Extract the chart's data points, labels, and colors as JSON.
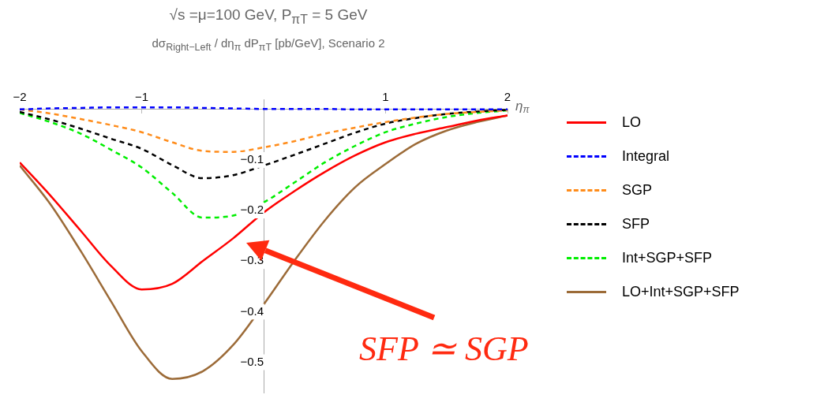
{
  "chart_data": {
    "type": "line",
    "title": "√s =μ=100 GeV, P$_{πT}$ = 5 GeV",
    "subtitle": "dσ$_{Right−Left}$ / dη$_{π}$ dP$_{πT}$ [pb/GeV], Scenario 2",
    "xlabel": "η$_{π}$",
    "x": [
      -2,
      -1.75,
      -1.5,
      -1.25,
      -1,
      -0.75,
      -0.5,
      -0.25,
      0,
      0.25,
      0.5,
      0.75,
      1,
      1.25,
      1.5,
      1.75,
      2
    ],
    "series": [
      {
        "name": "LO",
        "color": "#ff0000",
        "line_style": "solid",
        "values": [
          -0.105,
          -0.17,
          -0.24,
          -0.31,
          -0.356,
          -0.345,
          -0.3,
          -0.255,
          -0.204,
          -0.162,
          -0.124,
          -0.091,
          -0.065,
          -0.048,
          -0.035,
          -0.022,
          -0.012
        ]
      },
      {
        "name": "Integral",
        "color": "#0000ff",
        "line_style": "dashed",
        "values": [
          0,
          0.002,
          0.003,
          0.004,
          0.004,
          0.004,
          0.003,
          0.002,
          0.001,
          0.001,
          0.001,
          0,
          0,
          0,
          0,
          0,
          0
        ]
      },
      {
        "name": "SGP",
        "color": "#ff8c1a",
        "line_style": "dashed",
        "values": [
          0,
          -0.008,
          -0.019,
          -0.031,
          -0.045,
          -0.065,
          -0.082,
          -0.084,
          -0.075,
          -0.063,
          -0.048,
          -0.036,
          -0.025,
          -0.016,
          -0.009,
          -0.005,
          -0.002
        ]
      },
      {
        "name": "SFP",
        "color": "#000000",
        "line_style": "dashed",
        "values": [
          -0.005,
          -0.02,
          -0.038,
          -0.058,
          -0.078,
          -0.11,
          -0.136,
          -0.13,
          -0.111,
          -0.09,
          -0.068,
          -0.046,
          -0.028,
          -0.017,
          -0.009,
          -0.004,
          -0.001
        ]
      },
      {
        "name": "Int+SGP+SFP",
        "color": "#00ee00",
        "line_style": "dashed",
        "values": [
          -0.007,
          -0.025,
          -0.048,
          -0.08,
          -0.115,
          -0.165,
          -0.214,
          -0.21,
          -0.184,
          -0.145,
          -0.105,
          -0.072,
          -0.045,
          -0.028,
          -0.015,
          -0.007,
          -0.002
        ]
      },
      {
        "name": "LO+Int+SGP+SFP",
        "color": "#9c6b38",
        "line_style": "solid",
        "values": [
          -0.111,
          -0.187,
          -0.28,
          -0.38,
          -0.478,
          -0.533,
          -0.518,
          -0.466,
          -0.386,
          -0.3,
          -0.22,
          -0.154,
          -0.108,
          -0.068,
          -0.042,
          -0.025,
          -0.012
        ]
      }
    ],
    "xlim": [
      -2,
      2
    ],
    "ylim": [
      -0.56,
      0.02
    ],
    "xticks": [
      -2,
      -1,
      {
        "value": 0,
        "label": null
      },
      1,
      2
    ],
    "yticks": [
      -0.5,
      -0.4,
      -0.3,
      -0.2,
      -0.1,
      {
        "value": 0,
        "label": null
      }
    ],
    "grid": false,
    "legend": "right",
    "marker": "none",
    "annotations": [
      "SFP ≃ SGP"
    ]
  }
}
